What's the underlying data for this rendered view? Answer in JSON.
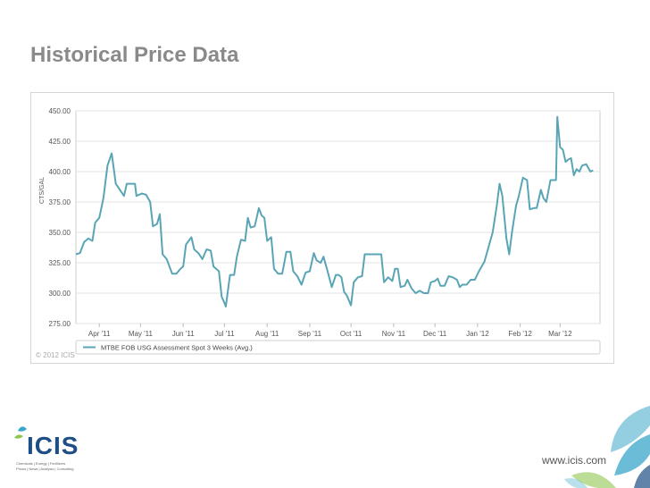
{
  "slide": {
    "title": "Historical Price Data",
    "copyright": "© 2012 ICIS",
    "website": "www.icis.com",
    "logo_text": "ICIS",
    "logo_tagline_1": "Chemicals | Energy | Fertilizers",
    "logo_tagline_2": "Prices | News | Analysis | Consulting"
  },
  "colors": {
    "series": "#5aa5b5",
    "grid": "#e3e3e3",
    "title": "#8a8a8a",
    "logo": "#1e4e86",
    "deco": "#3aa6c8"
  },
  "chart_data": {
    "type": "line",
    "title": "",
    "xlabel": "",
    "ylabel": "CTS/GAL",
    "ylim": [
      275,
      450
    ],
    "yticks": [
      275,
      300,
      325,
      350,
      375,
      400,
      425,
      450
    ],
    "ytick_labels": [
      "275.00",
      "300.00",
      "325.00",
      "350.00",
      "375.00",
      "400.00",
      "425.00",
      "450.00"
    ],
    "x_range": [
      "2011-03-15",
      "2012-03-30"
    ],
    "xticks": [
      "2011-04-01",
      "2011-05-01",
      "2011-06-01",
      "2011-07-01",
      "2011-08-01",
      "2011-09-01",
      "2011-10-01",
      "2011-11-01",
      "2011-12-01",
      "2012-01-01",
      "2012-02-01",
      "2012-03-01"
    ],
    "xtick_labels": [
      "Apr '11",
      "May '11",
      "Jun '11",
      "Jul '11",
      "Aug '11",
      "Sep '11",
      "Oct '11",
      "Nov '11",
      "Dec '11",
      "Jan '12",
      "Feb '12",
      "Mar '12"
    ],
    "grid": true,
    "legend": "bottom",
    "series": [
      {
        "name": "MTBE FOB USG Assessment Spot 3 Weeks (Avg.)",
        "points": [
          [
            "2011-03-15",
            332
          ],
          [
            "2011-03-18",
            333
          ],
          [
            "2011-03-21",
            342
          ],
          [
            "2011-03-24",
            345
          ],
          [
            "2011-03-27",
            343
          ],
          [
            "2011-03-29",
            358
          ],
          [
            "2011-04-01",
            362
          ],
          [
            "2011-04-04",
            378
          ],
          [
            "2011-04-07",
            405
          ],
          [
            "2011-04-10",
            415
          ],
          [
            "2011-04-13",
            390
          ],
          [
            "2011-04-16",
            385
          ],
          [
            "2011-04-19",
            380
          ],
          [
            "2011-04-21",
            390
          ],
          [
            "2011-04-24",
            390
          ],
          [
            "2011-04-27",
            390
          ],
          [
            "2011-04-28",
            380
          ],
          [
            "2011-05-02",
            382
          ],
          [
            "2011-05-05",
            381
          ],
          [
            "2011-05-08",
            375
          ],
          [
            "2011-05-10",
            355
          ],
          [
            "2011-05-13",
            357
          ],
          [
            "2011-05-15",
            365
          ],
          [
            "2011-05-17",
            332
          ],
          [
            "2011-05-20",
            328
          ],
          [
            "2011-05-24",
            316
          ],
          [
            "2011-05-27",
            316
          ],
          [
            "2011-05-30",
            320
          ],
          [
            "2011-06-01",
            322
          ],
          [
            "2011-06-03",
            340
          ],
          [
            "2011-06-07",
            346
          ],
          [
            "2011-06-09",
            336
          ],
          [
            "2011-06-12",
            333
          ],
          [
            "2011-06-15",
            328
          ],
          [
            "2011-06-18",
            336
          ],
          [
            "2011-06-21",
            335
          ],
          [
            "2011-06-23",
            322
          ],
          [
            "2011-06-25",
            320
          ],
          [
            "2011-06-27",
            318
          ],
          [
            "2011-06-29",
            297
          ],
          [
            "2011-07-01",
            292
          ],
          [
            "2011-07-02",
            289
          ],
          [
            "2011-07-05",
            315
          ],
          [
            "2011-07-08",
            315
          ],
          [
            "2011-07-10",
            330
          ],
          [
            "2011-07-13",
            344
          ],
          [
            "2011-07-16",
            343
          ],
          [
            "2011-07-18",
            362
          ],
          [
            "2011-07-20",
            354
          ],
          [
            "2011-07-23",
            355
          ],
          [
            "2011-07-26",
            370
          ],
          [
            "2011-07-28",
            364
          ],
          [
            "2011-07-30",
            362
          ],
          [
            "2011-08-01",
            343
          ],
          [
            "2011-08-04",
            346
          ],
          [
            "2011-08-06",
            320
          ],
          [
            "2011-08-09",
            316
          ],
          [
            "2011-08-12",
            316
          ],
          [
            "2011-08-15",
            334
          ],
          [
            "2011-08-18",
            334
          ],
          [
            "2011-08-20",
            318
          ],
          [
            "2011-08-23",
            314
          ],
          [
            "2011-08-26",
            307
          ],
          [
            "2011-08-29",
            317
          ],
          [
            "2011-09-01",
            318
          ],
          [
            "2011-09-04",
            333
          ],
          [
            "2011-09-06",
            327
          ],
          [
            "2011-09-09",
            325
          ],
          [
            "2011-09-11",
            330
          ],
          [
            "2011-09-14",
            318
          ],
          [
            "2011-09-17",
            305
          ],
          [
            "2011-09-20",
            315
          ],
          [
            "2011-09-22",
            315
          ],
          [
            "2011-09-24",
            313
          ],
          [
            "2011-09-26",
            301
          ],
          [
            "2011-09-28",
            298
          ],
          [
            "2011-10-01",
            290
          ],
          [
            "2011-10-03",
            309
          ],
          [
            "2011-10-06",
            313
          ],
          [
            "2011-10-09",
            314
          ],
          [
            "2011-10-11",
            332
          ],
          [
            "2011-10-14",
            332
          ],
          [
            "2011-10-17",
            332
          ],
          [
            "2011-10-20",
            332
          ],
          [
            "2011-10-23",
            332
          ],
          [
            "2011-10-25",
            309
          ],
          [
            "2011-10-28",
            313
          ],
          [
            "2011-10-31",
            310
          ],
          [
            "2011-11-02",
            320
          ],
          [
            "2011-11-04",
            320
          ],
          [
            "2011-11-06",
            305
          ],
          [
            "2011-11-09",
            306
          ],
          [
            "2011-11-11",
            311
          ],
          [
            "2011-11-14",
            304
          ],
          [
            "2011-11-17",
            300
          ],
          [
            "2011-11-20",
            302
          ],
          [
            "2011-11-23",
            300
          ],
          [
            "2011-11-26",
            300
          ],
          [
            "2011-11-28",
            309
          ],
          [
            "2011-12-01",
            310
          ],
          [
            "2011-12-03",
            312
          ],
          [
            "2011-12-05",
            306
          ],
          [
            "2011-12-08",
            306
          ],
          [
            "2011-12-11",
            314
          ],
          [
            "2011-12-14",
            313
          ],
          [
            "2011-12-17",
            311
          ],
          [
            "2011-12-19",
            305
          ],
          [
            "2011-12-21",
            307
          ],
          [
            "2011-12-24",
            307
          ],
          [
            "2011-12-27",
            311
          ],
          [
            "2011-12-30",
            311
          ],
          [
            "2012-01-02",
            318
          ],
          [
            "2012-01-04",
            322
          ],
          [
            "2012-01-06",
            326
          ],
          [
            "2012-01-09",
            338
          ],
          [
            "2012-01-12",
            350
          ],
          [
            "2012-01-15",
            372
          ],
          [
            "2012-01-17",
            390
          ],
          [
            "2012-01-19",
            380
          ],
          [
            "2012-01-22",
            345
          ],
          [
            "2012-01-24",
            332
          ],
          [
            "2012-01-26",
            350
          ],
          [
            "2012-01-29",
            372
          ],
          [
            "2012-01-31",
            380
          ],
          [
            "2012-02-03",
            395
          ],
          [
            "2012-02-06",
            393
          ],
          [
            "2012-02-08",
            369
          ],
          [
            "2012-02-11",
            370
          ],
          [
            "2012-02-13",
            370
          ],
          [
            "2012-02-16",
            385
          ],
          [
            "2012-02-18",
            378
          ],
          [
            "2012-02-20",
            375
          ],
          [
            "2012-02-23",
            393
          ],
          [
            "2012-02-25",
            393
          ],
          [
            "2012-02-27",
            393
          ],
          [
            "2012-02-28",
            445
          ],
          [
            "2012-03-01",
            420
          ],
          [
            "2012-03-03",
            418
          ],
          [
            "2012-03-05",
            408
          ],
          [
            "2012-03-07",
            410
          ],
          [
            "2012-03-09",
            411
          ],
          [
            "2012-03-11",
            397
          ],
          [
            "2012-03-13",
            402
          ],
          [
            "2012-03-15",
            400
          ],
          [
            "2012-03-17",
            405
          ],
          [
            "2012-03-20",
            406
          ],
          [
            "2012-03-23",
            400
          ],
          [
            "2012-03-25",
            401
          ]
        ]
      }
    ]
  }
}
